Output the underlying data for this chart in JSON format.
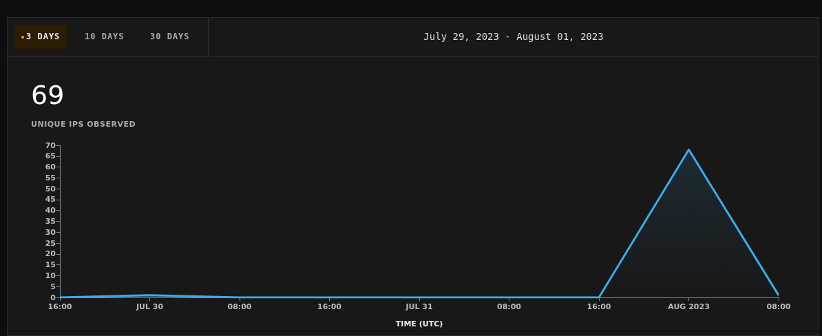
{
  "chart_data": {
    "type": "area",
    "title": "69",
    "subtitle": "UNIQUE IPS OBSERVED",
    "xlabel": "TIME (UTC)",
    "annotations": [
      "3 DAYS",
      "10 DAYS",
      "30 DAYS",
      "July 29, 2023 - August 01, 2023"
    ],
    "x": [
      "2023-07-29T16:00",
      "2023-07-30T00:00",
      "2023-07-30T08:00",
      "2023-07-30T16:00",
      "2023-07-31T00:00",
      "2023-07-31T08:00",
      "2023-07-31T16:00",
      "2023-08-01T00:00",
      "2023-08-01T08:00"
    ],
    "series": [
      {
        "color": "#3fa9e8",
        "values": [
          0,
          1,
          0,
          0,
          0,
          0,
          0,
          68,
          1
        ]
      }
    ],
    "xlim": [
      "2023-07-29T16:00",
      "2023-08-01T08:00"
    ],
    "xticks": [
      {
        "value": "2023-07-29T16:00",
        "label": "16:00"
      },
      {
        "value": "2023-07-30T00:00",
        "label": "JUL 30"
      },
      {
        "value": "2023-07-30T08:00",
        "label": "08:00"
      },
      {
        "value": "2023-07-30T16:00",
        "label": "16:00"
      },
      {
        "value": "2023-07-31T00:00",
        "label": "JUL 31"
      },
      {
        "value": "2023-07-31T08:00",
        "label": "08:00"
      },
      {
        "value": "2023-07-31T16:00",
        "label": "16:00"
      },
      {
        "value": "2023-08-01T00:00",
        "label": "AUG 2023"
      },
      {
        "value": "2023-08-01T08:00",
        "label": "08:00"
      }
    ],
    "ylim": [
      0,
      70
    ],
    "yticks": [
      0,
      5,
      10,
      15,
      20,
      25,
      30,
      35,
      40,
      45,
      50,
      55,
      60,
      65,
      70
    ],
    "grid": false,
    "marker": "none",
    "line_style": "solid"
  }
}
